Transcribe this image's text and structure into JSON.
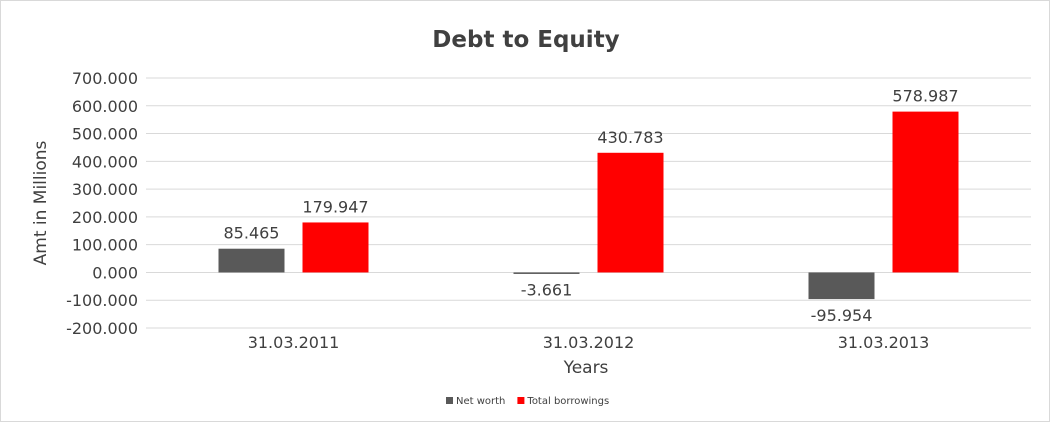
{
  "chart_data": {
    "type": "bar",
    "title": "Debt to Equity",
    "xlabel": "Years",
    "ylabel": "Amt in Millions",
    "categories": [
      "31.03.2011",
      "31.03.2012",
      "31.03.2013"
    ],
    "series": [
      {
        "name": "Net worth",
        "values": [
          85.465,
          -3.661,
          -95.954
        ],
        "labels": [
          "85.465",
          "-3.661",
          "-95.954"
        ],
        "color": "#595959"
      },
      {
        "name": "Total borrowings",
        "values": [
          179.947,
          430.783,
          578.987
        ],
        "labels": [
          "179.947",
          "430.783",
          "578.987"
        ],
        "color": "#ff0000"
      }
    ],
    "ylim": [
      -200,
      700
    ],
    "yticks": [
      -200,
      -100,
      0,
      100,
      200,
      300,
      400,
      500,
      600,
      700
    ],
    "ytick_labels": [
      "-200.000",
      "-100.000",
      "0.000",
      "100.000",
      "200.000",
      "300.000",
      "400.000",
      "500.000",
      "600.000",
      "700.000"
    ],
    "grid": true,
    "legend": "bottom"
  }
}
